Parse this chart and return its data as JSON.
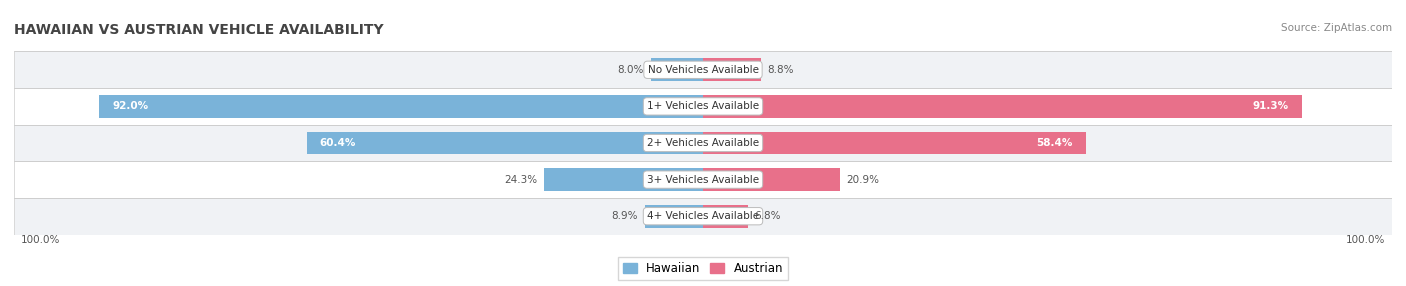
{
  "title": "HAWAIIAN VS AUSTRIAN VEHICLE AVAILABILITY",
  "source": "Source: ZipAtlas.com",
  "categories": [
    "No Vehicles Available",
    "1+ Vehicles Available",
    "2+ Vehicles Available",
    "3+ Vehicles Available",
    "4+ Vehicles Available"
  ],
  "hawaiian": [
    8.0,
    92.0,
    60.4,
    24.3,
    8.9
  ],
  "austrian": [
    8.8,
    91.3,
    58.4,
    20.9,
    6.8
  ],
  "hawaiian_color": "#7ab3d9",
  "austrian_color": "#e8708a",
  "hawaiian_light": "#aecde8",
  "austrian_light": "#f0a0b5",
  "row_colors": [
    "#f0f2f5",
    "#ffffff",
    "#f0f2f5",
    "#ffffff",
    "#f0f2f5"
  ],
  "title_color": "#444444",
  "source_color": "#888888",
  "label_color_dark": "#555555",
  "label_color_white": "#ffffff",
  "bar_height": 0.62,
  "figsize": [
    14.06,
    2.86
  ],
  "dpi": 100,
  "xlim": 105,
  "threshold_inside": 40
}
